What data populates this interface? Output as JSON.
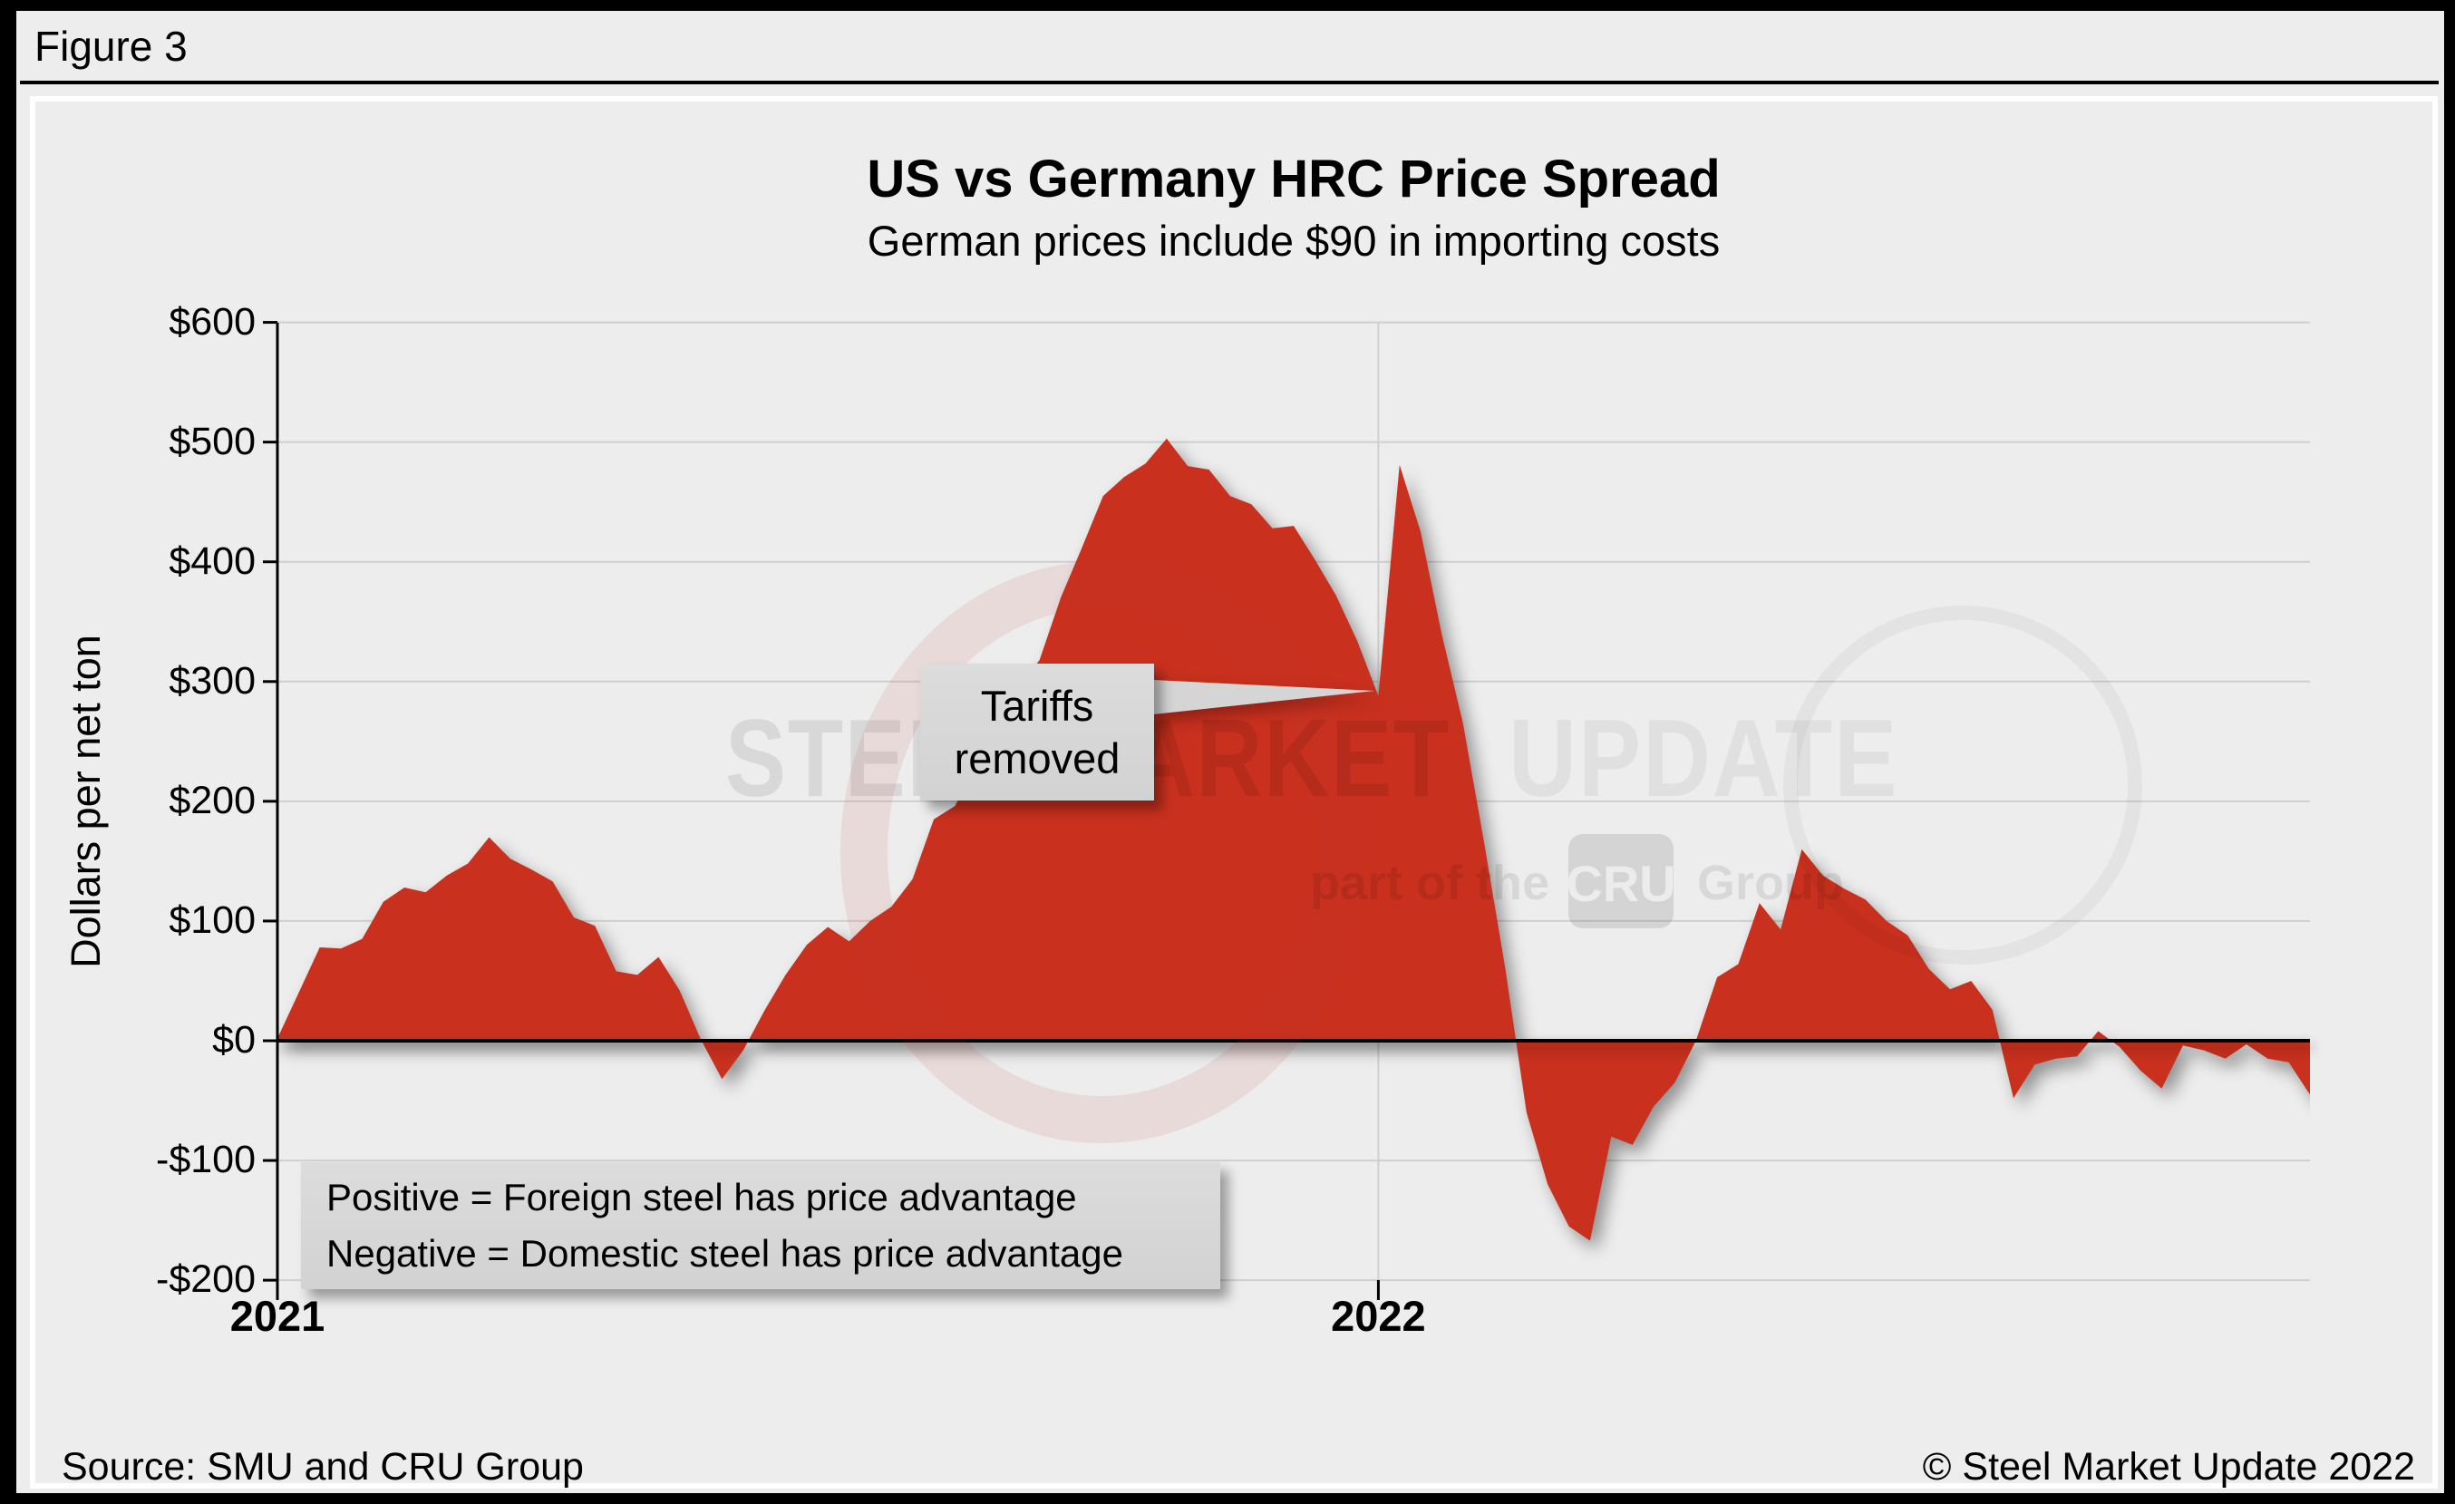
{
  "figure_label": "Figure 3",
  "header": {
    "title": "US vs Germany HRC Price Spread",
    "subtitle": "German prices include $90 in importing costs"
  },
  "footer": {
    "source": "Source: SMU and CRU Group",
    "copyright": "© Steel Market Update 2022"
  },
  "annotation": {
    "line1": "Tariffs",
    "line2": "removed"
  },
  "legend_note": {
    "line1": "Positive = Foreign steel has price advantage",
    "line2": "Negative = Domestic steel has price advantage"
  },
  "watermark": {
    "part1": "STEEL MARKET",
    "part2": "UPDATE",
    "tagline_pre": "part of the",
    "tagline_logo": "CRU",
    "tagline_post": "Group"
  },
  "colors": {
    "area": "#c9301e",
    "background": "#ededed",
    "grid": "#cfcfcf",
    "zero_line": "#000000",
    "axis": "#000000",
    "box": "#d8d8d8"
  },
  "chart_data": {
    "type": "area",
    "title": "US vs Germany HRC Price Spread",
    "subtitle": "German prices include $90 in importing costs",
    "ylabel": "Dollars per net ton",
    "ylim": [
      -200,
      600
    ],
    "grid": true,
    "y_tick_values": [
      600,
      500,
      400,
      300,
      200,
      100,
      0,
      -100,
      -200
    ],
    "y_tick_labels": [
      "$600",
      "$500",
      "$400",
      "$300",
      "$200",
      "$100",
      "$0",
      "-$100",
      "-$200"
    ],
    "x_tick_labels": [
      "2021",
      "2022"
    ],
    "x_unit": "weeks starting January 2021",
    "values": [
      2,
      40,
      78,
      77,
      85,
      116,
      128,
      124,
      138,
      148,
      170,
      152,
      143,
      133,
      103,
      96,
      58,
      55,
      70,
      42,
      1,
      -32,
      -8,
      25,
      55,
      80,
      95,
      83,
      100,
      112,
      135,
      185,
      196,
      228,
      272,
      295,
      318,
      370,
      412,
      455,
      471,
      482,
      503,
      480,
      477,
      455,
      448,
      428,
      430,
      402,
      372,
      334,
      288,
      481,
      425,
      339,
      265,
      165,
      60,
      -60,
      -120,
      -155,
      -167,
      -80,
      -87,
      -55,
      -35,
      0,
      53,
      64,
      115,
      93,
      160,
      138,
      127,
      118,
      100,
      88,
      60,
      43,
      50,
      26,
      -48,
      -20,
      -15,
      -13,
      8,
      -5,
      -25,
      -40,
      -4,
      -8,
      -15,
      -3,
      -15,
      -18,
      -45,
      -50
    ],
    "annotation_target": {
      "week": 51.8,
      "value": 292
    }
  }
}
